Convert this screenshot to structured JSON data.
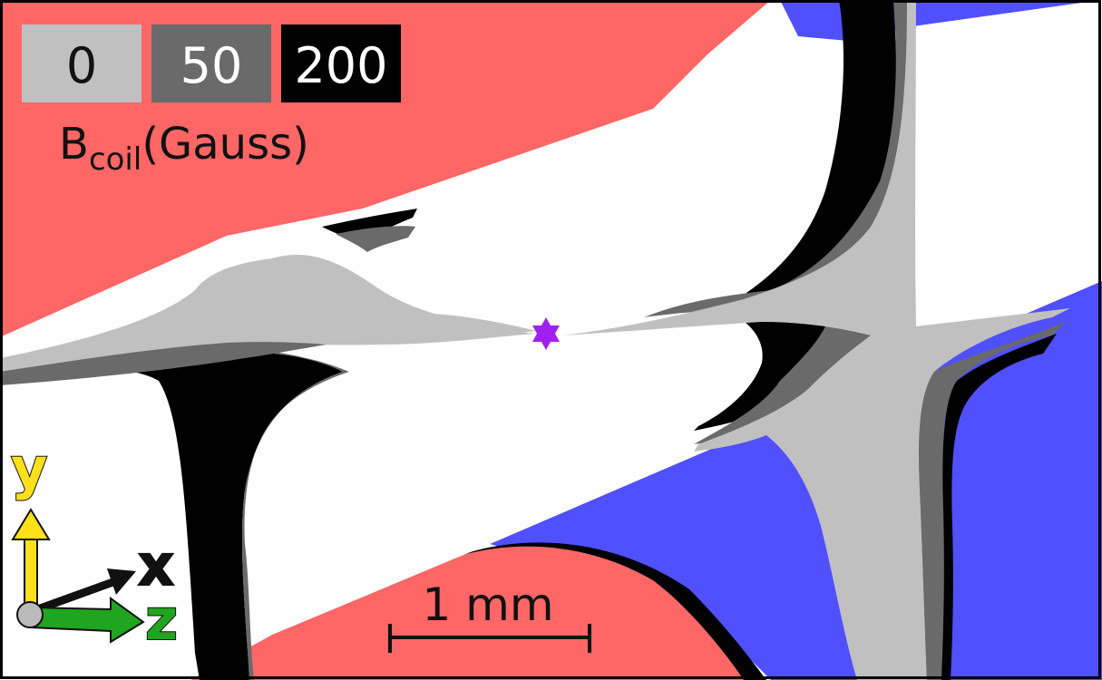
{
  "legend": {
    "items": [
      {
        "label": "0",
        "fill": "#c0c0c0",
        "text_color": "#111111"
      },
      {
        "label": "50",
        "fill": "#6a6a6a",
        "text_color": "#ffffff"
      },
      {
        "label": "200",
        "fill": "#000000",
        "text_color": "#ffffff"
      }
    ],
    "quantity_main": "B",
    "quantity_sub": "coil",
    "quantity_unit": "(Gauss)"
  },
  "scale_bar": {
    "label": "1 mm"
  },
  "axes": {
    "y": {
      "label": "y",
      "color": "#ffe01a"
    },
    "x": {
      "label": "x",
      "color": "#111111"
    },
    "z": {
      "label": "z",
      "color": "#1fa51f"
    }
  },
  "colors": {
    "red_region": "#ff6666",
    "blue_region": "#5050ff",
    "light_gray": "#c0c0c0",
    "mid_gray": "#6a6a6a",
    "black": "#000000",
    "star": "#a020f0"
  },
  "markers": [
    {
      "name": "center-star",
      "icon": "six-point-star-icon"
    }
  ]
}
